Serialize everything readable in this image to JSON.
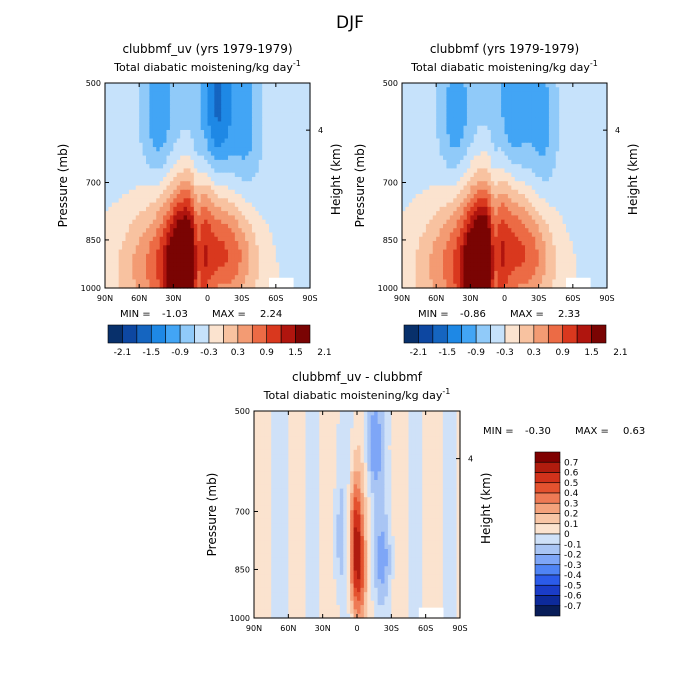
{
  "figure": {
    "season": "DJF"
  },
  "colors": {
    "diverging": [
      "#08306b",
      "#0d47a1",
      "#1565c0",
      "#1e88e5",
      "#42a5f5",
      "#90caf9",
      "#c6e2fb",
      "#fbe3cf",
      "#f8c2a0",
      "#f39b73",
      "#ec6b45",
      "#d9381e",
      "#b0150e",
      "#7a0403"
    ],
    "diff": [
      "#081d58",
      "#0d2a9a",
      "#1a3cc8",
      "#2b5bea",
      "#4f84f5",
      "#7ea6f7",
      "#a9c5f4",
      "#cfe1f8",
      "#fbe3cf",
      "#f8c6a6",
      "#f4a27c",
      "#ee7a55",
      "#e4522f",
      "#d1321b",
      "#b01c0e",
      "#7f0000"
    ]
  },
  "chart_data": [
    {
      "type": "heatmap",
      "id": "panel1",
      "title": "clubbmf_uv (yrs 1979-1979)",
      "subtitle": "Total diabatic moistening",
      "subtitle_units": "/kg day",
      "subtitle_exp": "-1",
      "ylabel": "Pressure (mb)",
      "ylabel_right": "Height (km)",
      "x_ticks": [
        "90N",
        "60N",
        "30N",
        "0",
        "30S",
        "60S",
        "90S"
      ],
      "y_ticks": [
        500,
        700,
        850,
        1000
      ],
      "right_ticks": [
        4
      ],
      "stats": {
        "min_label": "MIN =",
        "min": "-1.03",
        "max_label": "MAX =",
        "max": "2.24"
      },
      "colorbar": {
        "orientation": "horizontal",
        "labels": [
          "-2.1",
          "-1.5",
          "-0.9",
          "-0.3",
          "0.3",
          "0.9",
          "1.5",
          "2.1"
        ]
      }
    },
    {
      "type": "heatmap",
      "id": "panel2",
      "title": "clubbmf (yrs 1979-1979)",
      "subtitle": "Total diabatic moistening",
      "subtitle_units": "/kg day",
      "subtitle_exp": "-1",
      "ylabel": "Pressure (mb)",
      "ylabel_right": "Height (km)",
      "x_ticks": [
        "90N",
        "60N",
        "30N",
        "0",
        "30S",
        "60S",
        "90S"
      ],
      "y_ticks": [
        500,
        700,
        850,
        1000
      ],
      "right_ticks": [
        4
      ],
      "stats": {
        "min_label": "MIN =",
        "min": "-0.86",
        "max_label": "MAX =",
        "max": "2.33"
      },
      "colorbar": {
        "orientation": "horizontal",
        "labels": [
          "-2.1",
          "-1.5",
          "-0.9",
          "-0.3",
          "0.3",
          "0.9",
          "1.5",
          "2.1"
        ]
      }
    },
    {
      "type": "heatmap",
      "id": "panel3",
      "title": "clubbmf_uv - clubbmf",
      "subtitle": "Total diabatic moistening",
      "subtitle_units": "/kg day",
      "subtitle_exp": "-1",
      "ylabel": "Pressure (mb)",
      "ylabel_right": "Height (km)",
      "x_ticks": [
        "90N",
        "60N",
        "30N",
        "0",
        "30S",
        "60S",
        "90S"
      ],
      "y_ticks": [
        500,
        700,
        850,
        1000
      ],
      "right_ticks": [
        4
      ],
      "stats": {
        "min_label": "MIN =",
        "min": "-0.30",
        "max_label": "MAX =",
        "max": "0.63"
      },
      "colorbar": {
        "orientation": "vertical",
        "labels": [
          "0.7",
          "0.6",
          "0.5",
          "0.4",
          "0.3",
          "0.2",
          "0.1",
          "0",
          "-0.1",
          "-0.2",
          "-0.3",
          "-0.4",
          "-0.5",
          "-0.6",
          "-0.7"
        ]
      }
    }
  ]
}
